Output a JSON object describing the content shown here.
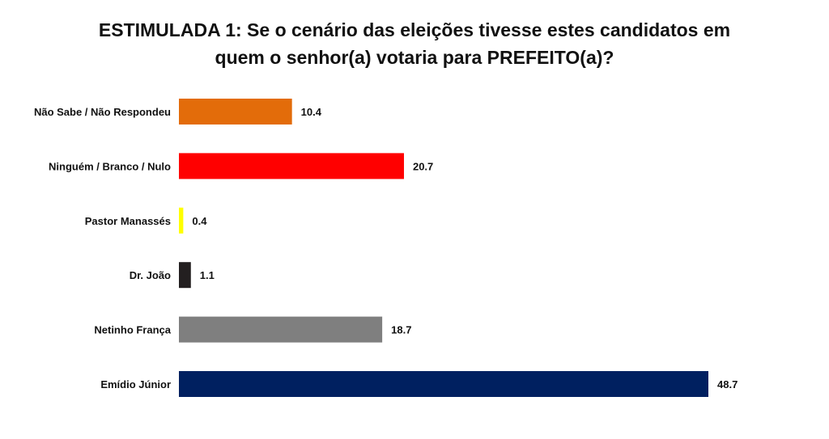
{
  "chart_data": {
    "type": "bar",
    "orientation": "horizontal",
    "title": [
      "ESTIMULADA 1: Se o cenário das eleições tivesse estes candidatos em",
      "quem o senhor(a) votaria para PREFEITO(a)?"
    ],
    "categories": [
      "Não Sabe / Não Respondeu",
      "Ninguém / Branco / Nulo",
      "Pastor Manassés",
      "Dr. João",
      "Netinho França",
      "Emídio Júnior"
    ],
    "values": [
      10.4,
      20.7,
      0.4,
      1.1,
      18.7,
      48.7
    ],
    "value_labels": [
      "10.4",
      "20.7",
      "0.4",
      "1.1",
      "18.7",
      "48.7"
    ],
    "colors": [
      "#E36C0A",
      "#FF0000",
      "#FFFF00",
      "#231F20",
      "#7F7F7F",
      "#002060"
    ],
    "xlim": [
      0,
      50
    ],
    "grid": false,
    "legend": "none"
  }
}
